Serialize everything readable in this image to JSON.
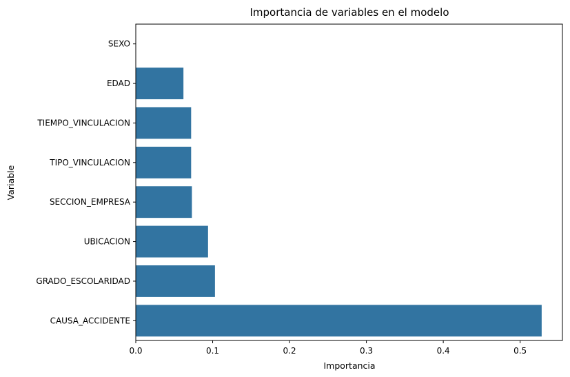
{
  "chart_data": {
    "type": "bar",
    "orientation": "horizontal",
    "title": "Importancia de variables en el modelo",
    "xlabel": "Importancia",
    "ylabel": "Variable",
    "categories": [
      "SEXO",
      "EDAD",
      "TIEMPO_VINCULACION",
      "TIPO_VINCULACION",
      "SECCION_EMPRESA",
      "UBICACION",
      "GRADO_ESCOLARIDAD",
      "CAUSA_ACCIDENTE"
    ],
    "values": [
      0.0,
      0.062,
      0.072,
      0.072,
      0.073,
      0.094,
      0.103,
      0.528
    ],
    "xlim": [
      0,
      0.555
    ],
    "xticks": [
      0,
      0.1,
      0.2,
      0.3,
      0.4,
      0.5
    ],
    "xtick_labels": [
      "0.0",
      "0.1",
      "0.2",
      "0.3",
      "0.4",
      "0.5"
    ],
    "bar_color": "#3274a1",
    "grid": false,
    "legend": "none"
  }
}
